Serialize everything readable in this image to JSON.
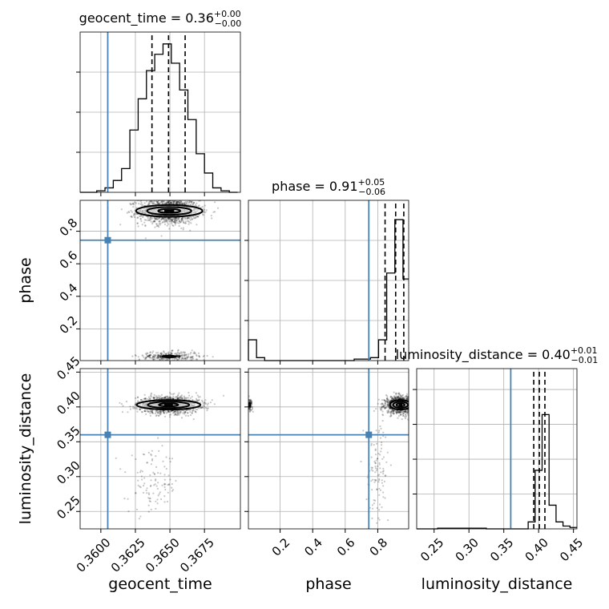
{
  "chart_data": {
    "type": "corner",
    "parameters": [
      "geocent_time",
      "phase",
      "luminosity_distance"
    ],
    "titles": {
      "geocent_time": {
        "name": "geocent_time",
        "median": "0.36",
        "plus": "+0.00",
        "minus": "−0.00"
      },
      "phase": {
        "name": "phase",
        "median": "0.91",
        "plus": "+0.05",
        "minus": "−0.06"
      },
      "luminosity_distance": {
        "name": "luminosity_distance",
        "median": "0.40",
        "plus": "+0.01",
        "minus": "−0.01"
      }
    },
    "axis_labels": {
      "geocent_time": "geocent_time",
      "phase": "phase",
      "luminosity_distance": "luminosity_distance"
    },
    "ranges": {
      "geocent_time": [
        0.3585,
        0.3701
      ],
      "phase": [
        0.005,
        0.99
      ],
      "luminosity_distance": [
        0.225,
        0.455
      ]
    },
    "ticks": {
      "geocent_time": [
        0.36,
        0.3625,
        0.365,
        0.3675
      ],
      "phase": [
        0.2,
        0.4,
        0.6,
        0.8
      ],
      "luminosity_distance": [
        0.25,
        0.3,
        0.35,
        0.4,
        0.45
      ]
    },
    "tick_labels": {
      "geocent_time": [
        "0.3600",
        "0.3625",
        "0.3650",
        "0.3675"
      ],
      "phase": [
        "0.2",
        "0.4",
        "0.6",
        "0.8"
      ],
      "luminosity_distance": [
        "0.25",
        "0.30",
        "0.35",
        "0.40",
        "0.45"
      ]
    },
    "truths": {
      "geocent_time": 0.3605,
      "phase": 0.745,
      "luminosity_distance": 0.36
    },
    "quantiles": {
      "geocent_time": [
        0.3637,
        0.3649,
        0.3661
      ],
      "phase": [
        0.845,
        0.91,
        0.96
      ],
      "luminosity_distance": [
        0.393,
        0.401,
        0.409
      ]
    },
    "histograms": {
      "geocent_time": {
        "edges": [
          0.3585,
          0.3591,
          0.3597,
          0.3603,
          0.3609,
          0.3615,
          0.3621,
          0.3627,
          0.3633,
          0.3639,
          0.3645,
          0.3651,
          0.3657,
          0.3663,
          0.3669,
          0.3675,
          0.3681,
          0.3687,
          0.3693,
          0.3699
        ],
        "counts": [
          0,
          0,
          0.01,
          0.03,
          0.08,
          0.16,
          0.42,
          0.63,
          0.82,
          0.93,
          1.0,
          0.87,
          0.69,
          0.49,
          0.26,
          0.13,
          0.03,
          0.01,
          0.0
        ]
      },
      "phase": {
        "edges": [
          0.005,
          0.055,
          0.105,
          0.155,
          0.205,
          0.255,
          0.305,
          0.355,
          0.405,
          0.455,
          0.505,
          0.555,
          0.605,
          0.655,
          0.705,
          0.755,
          0.805,
          0.855,
          0.905,
          0.955,
          0.99
        ],
        "counts": [
          0.14,
          0.02,
          0,
          0,
          0,
          0,
          0,
          0,
          0,
          0,
          0,
          0,
          0,
          0.01,
          0.01,
          0.02,
          0.14,
          0.59,
          0.95,
          0.55
        ]
      },
      "luminosity_distance": {
        "edges": [
          0.225,
          0.235,
          0.245,
          0.255,
          0.265,
          0.275,
          0.285,
          0.295,
          0.305,
          0.315,
          0.325,
          0.335,
          0.345,
          0.355,
          0.365,
          0.375,
          0.385,
          0.395,
          0.405,
          0.415,
          0.425,
          0.435,
          0.445,
          0.455
        ],
        "counts": [
          0,
          0,
          0,
          0.005,
          0.005,
          0.005,
          0.005,
          0.005,
          0.005,
          0.005,
          0,
          0,
          0,
          0,
          0,
          0,
          0.05,
          0.42,
          0.82,
          0.17,
          0.05,
          0.02,
          0.01
        ]
      }
    },
    "hist_ymax": {
      "geocent_time": 1.08,
      "phase": 1.08,
      "luminosity_distance": 1.15
    },
    "hist_yticks": {
      "geocent_time": [
        0.27,
        0.54,
        0.81
      ],
      "phase": [
        0.27,
        0.54,
        0.81
      ],
      "luminosity_distance": [
        0.25,
        0.5,
        0.75,
        1.0
      ]
    },
    "clusters": {
      "phase_vs_geocent_time": [
        {
          "x": 0.36495,
          "y": 0.925,
          "sx": 0.0011,
          "sy": 0.04,
          "n": 1300,
          "contours": [
            [
              0.0008,
              0.012
            ],
            [
              0.0016,
              0.024
            ],
            [
              0.0024,
              0.036
            ]
          ]
        },
        {
          "x": 0.36495,
          "y": 0.03,
          "sx": 0.0011,
          "sy": 0.015,
          "n": 320,
          "contours": [
            [
              0.0005,
              0.005
            ]
          ]
        }
      ],
      "luminosity_distance_vs_geocent_time": [
        {
          "x": 0.3649,
          "y": 0.403,
          "sx": 0.0011,
          "sy": 0.006,
          "n": 1300,
          "contours": [
            [
              0.0007,
              0.0022
            ],
            [
              0.0015,
              0.0045
            ],
            [
              0.0023,
              0.0068
            ]
          ]
        },
        {
          "x": 0.3638,
          "y": 0.29,
          "sx": 0.0009,
          "sy": 0.022,
          "n": 110,
          "contours": []
        }
      ],
      "luminosity_distance_vs_phase": [
        {
          "x": 0.94,
          "y": 0.403,
          "sx": 0.045,
          "sy": 0.006,
          "n": 1100,
          "contours": [
            [
              0.025,
              0.0022
            ],
            [
              0.045,
              0.0045
            ],
            [
              0.065,
              0.0068
            ]
          ]
        },
        {
          "x": 0.01,
          "y": 0.403,
          "sx": 0.01,
          "sy": 0.004,
          "n": 120,
          "contours": [
            [
              0.006,
              0.0025
            ]
          ]
        },
        {
          "x": 0.8,
          "y": 0.31,
          "sx": 0.035,
          "sy": 0.035,
          "n": 110,
          "contours": []
        }
      ]
    }
  }
}
